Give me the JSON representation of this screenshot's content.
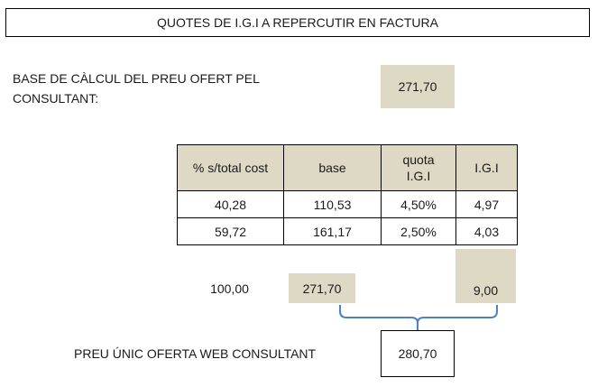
{
  "title": "QUOTES DE I.G.I A REPERCUTIR EN FACTURA",
  "base": {
    "label": "BASE DE CÀLCUL DEL PREU OFERT PEL CONSULTANT:",
    "value": "271,70"
  },
  "table": {
    "headers": [
      "% s/total cost",
      "base",
      "quota I.G.I",
      "I.G.I"
    ],
    "rows": [
      [
        "40,28",
        "110,53",
        "4,50%",
        "4,97"
      ],
      [
        "59,72",
        "161,17",
        "2,50%",
        "4,03"
      ]
    ]
  },
  "totals": {
    "pct": "100,00",
    "base": "271,70",
    "igi": "9,00"
  },
  "final": {
    "label": "PREU ÚNIC OFERTA WEB CONSULTANT",
    "value": "280,70"
  },
  "colors": {
    "highlight": "#ddd9c4",
    "brace": "#4f81bd"
  }
}
